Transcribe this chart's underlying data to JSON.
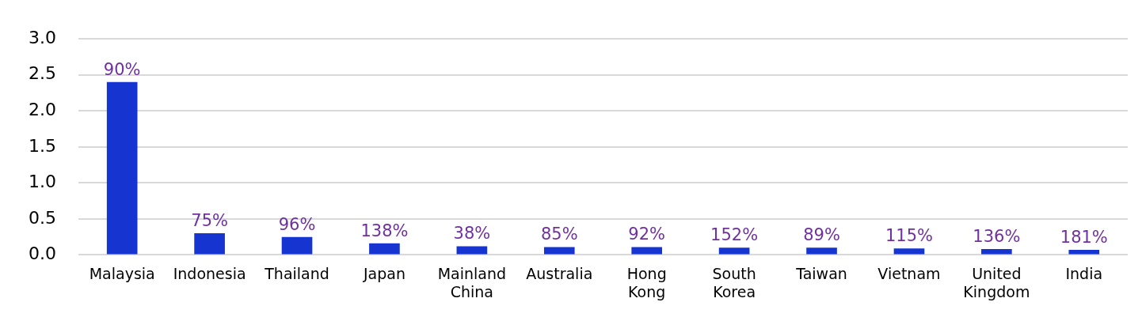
{
  "chart_data": {
    "type": "bar",
    "categories": [
      "Malaysia",
      "Indonesia",
      "Thailand",
      "Japan",
      "Mainland China",
      "Australia",
      "Hong Kong",
      "South Korea",
      "Taiwan",
      "Vietnam",
      "United Kingdom",
      "India"
    ],
    "values": [
      2.4,
      0.3,
      0.25,
      0.16,
      0.12,
      0.11,
      0.11,
      0.1,
      0.1,
      0.09,
      0.08,
      0.07
    ],
    "annotations": [
      {
        "text": "90%",
        "x": "Malaysia",
        "y": 2.4
      },
      {
        "text": "75%",
        "x": "Indonesia",
        "y": 0.3
      },
      {
        "text": "96%",
        "x": "Thailand",
        "y": 0.25
      },
      {
        "text": "138%",
        "x": "Japan",
        "y": 0.16
      },
      {
        "text": "38%",
        "x": "Mainland China",
        "y": 0.12
      },
      {
        "text": "85%",
        "x": "Australia",
        "y": 0.11
      },
      {
        "text": "92%",
        "x": "Hong Kong",
        "y": 0.11
      },
      {
        "text": "152%",
        "x": "South Korea",
        "y": 0.1
      },
      {
        "text": "89%",
        "x": "Taiwan",
        "y": 0.1
      },
      {
        "text": "115%",
        "x": "Vietnam",
        "y": 0.09
      },
      {
        "text": "136%",
        "x": "United Kingdom",
        "y": 0.08
      },
      {
        "text": "181%",
        "x": "India",
        "y": 0.07
      }
    ],
    "color": "#1534d0",
    "ylim": [
      0,
      3
    ],
    "yticks": [
      {
        "value": 0,
        "label": "0.0"
      },
      {
        "value": 0.5,
        "label": "0.5"
      },
      {
        "value": 1,
        "label": "1.0"
      },
      {
        "value": 1.5,
        "label": "1.5"
      },
      {
        "value": 2,
        "label": "2.0"
      },
      {
        "value": 2.5,
        "label": "2.5"
      },
      {
        "value": 3,
        "label": "3.0"
      }
    ],
    "grid": "y",
    "legend": false
  }
}
